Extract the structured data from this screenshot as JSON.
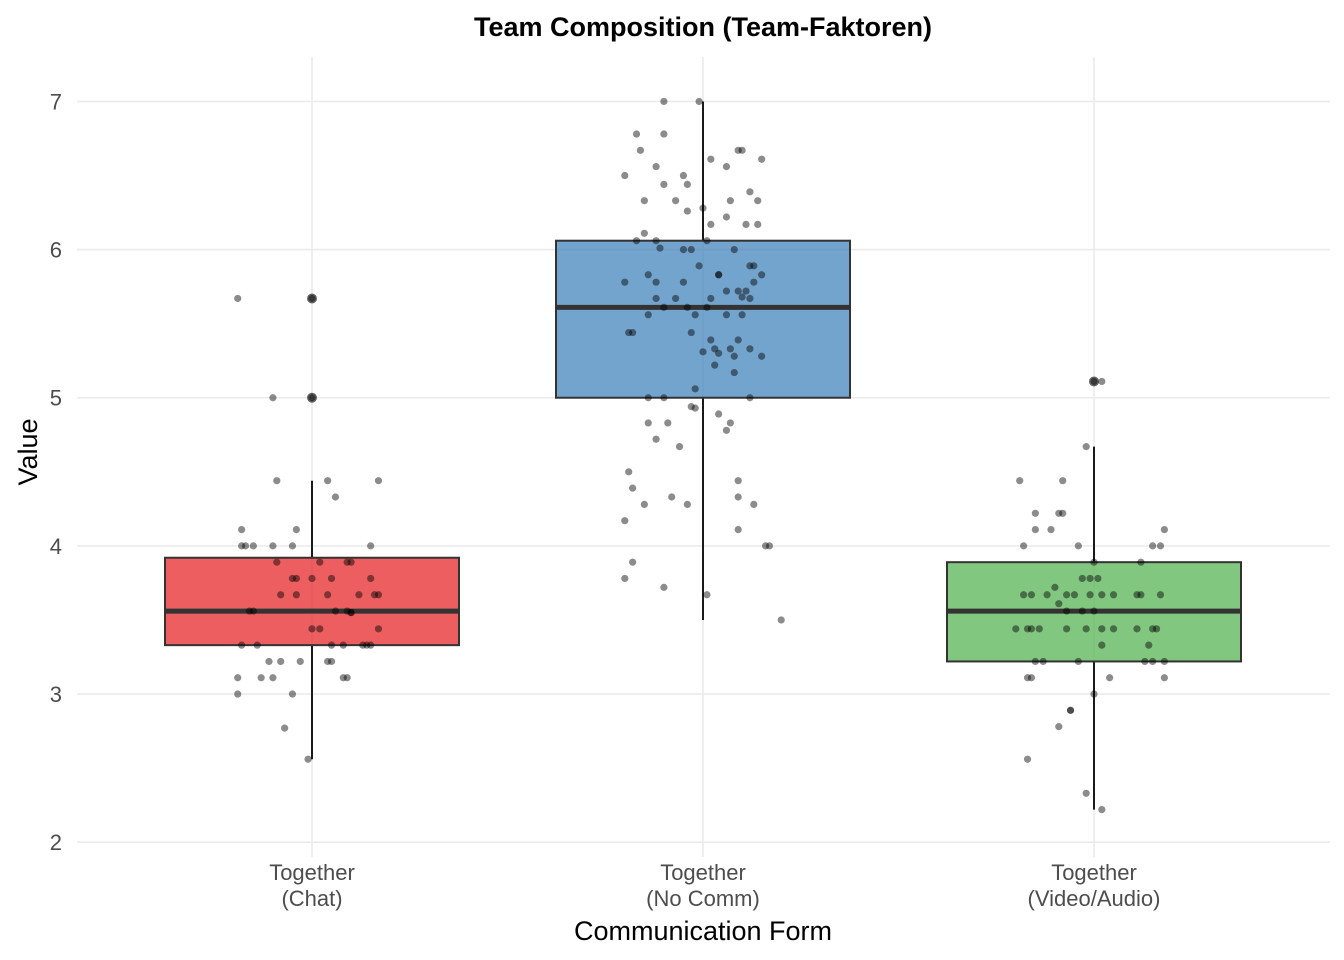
{
  "chart_data": {
    "type": "box",
    "title": "Team Composition (Team-Faktoren)",
    "xlabel": "Communication Form",
    "ylabel": "Value",
    "ylim": [
      1.9,
      7.3
    ],
    "yticks": [
      "2",
      "3",
      "4",
      "5",
      "6",
      "7"
    ],
    "grid": true,
    "legend": "none",
    "categories": [
      {
        "line1": "Together",
        "line2": "(Chat)"
      },
      {
        "line1": "Together",
        "line2": "(No Comm)"
      },
      {
        "line1": "Together",
        "line2": "(Video/Audio)"
      }
    ],
    "boxes": [
      {
        "name": "Together (Chat)",
        "color": "#E41A1C",
        "q1": 3.33,
        "median": 3.56,
        "q3": 3.92,
        "whisker_low": 2.56,
        "whisker_high": 4.44,
        "outliers": [
          5.67,
          5.0
        ],
        "points": [
          [
            -0.19,
            5.67
          ],
          [
            -0.1,
            5.0
          ],
          [
            0.0,
            5.67
          ],
          [
            0.0,
            5.0
          ],
          [
            -0.09,
            4.44
          ],
          [
            0.04,
            4.44
          ],
          [
            0.17,
            4.44
          ],
          [
            0.06,
            4.33
          ],
          [
            -0.18,
            4.11
          ],
          [
            -0.04,
            4.11
          ],
          [
            -0.18,
            4.0
          ],
          [
            -0.17,
            4.0
          ],
          [
            -0.15,
            4.0
          ],
          [
            -0.1,
            4.0
          ],
          [
            -0.05,
            4.0
          ],
          [
            0.15,
            4.0
          ],
          [
            -0.09,
            3.89
          ],
          [
            0.02,
            3.89
          ],
          [
            0.09,
            3.89
          ],
          [
            0.1,
            3.89
          ],
          [
            -0.05,
            3.78
          ],
          [
            -0.04,
            3.78
          ],
          [
            0.0,
            3.78
          ],
          [
            0.05,
            3.78
          ],
          [
            0.15,
            3.78
          ],
          [
            -0.08,
            3.67
          ],
          [
            -0.04,
            3.67
          ],
          [
            0.04,
            3.67
          ],
          [
            0.12,
            3.67
          ],
          [
            0.17,
            3.67
          ],
          [
            0.16,
            3.67
          ],
          [
            -0.16,
            3.56
          ],
          [
            -0.15,
            3.56
          ],
          [
            0.06,
            3.56
          ],
          [
            0.09,
            3.56
          ],
          [
            0.1,
            3.55
          ],
          [
            0.1,
            3.55
          ],
          [
            0.02,
            3.44
          ],
          [
            0.0,
            3.44
          ],
          [
            0.17,
            3.44
          ],
          [
            -0.18,
            3.33
          ],
          [
            -0.14,
            3.33
          ],
          [
            0.05,
            3.33
          ],
          [
            0.08,
            3.33
          ],
          [
            0.13,
            3.33
          ],
          [
            0.14,
            3.33
          ],
          [
            0.15,
            3.33
          ],
          [
            -0.11,
            3.22
          ],
          [
            -0.08,
            3.22
          ],
          [
            -0.03,
            3.22
          ],
          [
            0.04,
            3.22
          ],
          [
            0.05,
            3.22
          ],
          [
            -0.19,
            3.11
          ],
          [
            -0.13,
            3.11
          ],
          [
            -0.1,
            3.11
          ],
          [
            0.08,
            3.11
          ],
          [
            0.09,
            3.11
          ],
          [
            -0.19,
            3.0
          ],
          [
            -0.05,
            3.0
          ],
          [
            -0.07,
            2.77
          ],
          [
            -0.01,
            2.56
          ]
        ]
      },
      {
        "name": "Together (No Comm)",
        "color": "#377EB8",
        "q1": 5.0,
        "median": 5.61,
        "q3": 6.06,
        "whisker_low": 3.5,
        "whisker_high": 7.0,
        "outliers": [],
        "points": [
          [
            -0.1,
            7.0
          ],
          [
            -0.01,
            7.0
          ],
          [
            -0.17,
            6.78
          ],
          [
            -0.1,
            6.78
          ],
          [
            -0.16,
            6.67
          ],
          [
            0.09,
            6.67
          ],
          [
            0.1,
            6.67
          ],
          [
            0.02,
            6.61
          ],
          [
            0.15,
            6.61
          ],
          [
            -0.12,
            6.56
          ],
          [
            0.06,
            6.56
          ],
          [
            -0.2,
            6.5
          ],
          [
            -0.05,
            6.5
          ],
          [
            -0.04,
            6.44
          ],
          [
            -0.1,
            6.44
          ],
          [
            0.12,
            6.39
          ],
          [
            0.07,
            6.33
          ],
          [
            0.14,
            6.33
          ],
          [
            -0.07,
            6.33
          ],
          [
            -0.15,
            6.33
          ],
          [
            0.0,
            6.28
          ],
          [
            -0.04,
            6.26
          ],
          [
            0.06,
            6.22
          ],
          [
            0.02,
            6.17
          ],
          [
            0.11,
            6.17
          ],
          [
            0.14,
            6.17
          ],
          [
            -0.15,
            6.11
          ],
          [
            -0.17,
            6.06
          ],
          [
            -0.12,
            6.06
          ],
          [
            0.01,
            6.06
          ],
          [
            -0.11,
            6.01
          ],
          [
            -0.05,
            6.0
          ],
          [
            -0.03,
            6.0
          ],
          [
            0.08,
            6.0
          ],
          [
            -0.01,
            5.89
          ],
          [
            0.12,
            5.89
          ],
          [
            0.13,
            5.89
          ],
          [
            -0.14,
            5.83
          ],
          [
            0.04,
            5.83
          ],
          [
            0.04,
            5.83
          ],
          [
            0.15,
            5.83
          ],
          [
            -0.2,
            5.78
          ],
          [
            -0.12,
            5.78
          ],
          [
            -0.05,
            5.78
          ],
          [
            0.13,
            5.78
          ],
          [
            0.06,
            5.72
          ],
          [
            0.09,
            5.72
          ],
          [
            0.11,
            5.72
          ],
          [
            0.1,
            5.68
          ],
          [
            -0.12,
            5.67
          ],
          [
            -0.07,
            5.67
          ],
          [
            0.02,
            5.67
          ],
          [
            0.12,
            5.67
          ],
          [
            -0.1,
            5.61
          ],
          [
            -0.04,
            5.61
          ],
          [
            0.01,
            5.61
          ],
          [
            -0.14,
            5.56
          ],
          [
            -0.02,
            5.56
          ],
          [
            0.06,
            5.56
          ],
          [
            0.1,
            5.56
          ],
          [
            -0.19,
            5.44
          ],
          [
            -0.18,
            5.44
          ],
          [
            -0.03,
            5.44
          ],
          [
            0.02,
            5.39
          ],
          [
            0.09,
            5.39
          ],
          [
            0.03,
            5.33
          ],
          [
            0.07,
            5.33
          ],
          [
            0.12,
            5.33
          ],
          [
            0.0,
            5.31
          ],
          [
            0.04,
            5.3
          ],
          [
            0.08,
            5.28
          ],
          [
            0.15,
            5.28
          ],
          [
            0.03,
            5.22
          ],
          [
            0.08,
            5.17
          ],
          [
            -0.02,
            5.06
          ],
          [
            -0.14,
            5.0
          ],
          [
            -0.1,
            5.0
          ],
          [
            0.12,
            5.0
          ],
          [
            -0.03,
            4.94
          ],
          [
            -0.02,
            4.93
          ],
          [
            0.04,
            4.89
          ],
          [
            -0.14,
            4.83
          ],
          [
            -0.09,
            4.83
          ],
          [
            0.07,
            4.83
          ],
          [
            0.06,
            4.78
          ],
          [
            -0.12,
            4.72
          ],
          [
            -0.06,
            4.67
          ],
          [
            -0.19,
            4.5
          ],
          [
            -0.18,
            4.39
          ],
          [
            0.09,
            4.44
          ],
          [
            0.09,
            4.33
          ],
          [
            -0.08,
            4.33
          ],
          [
            -0.04,
            4.28
          ],
          [
            0.13,
            4.28
          ],
          [
            -0.15,
            4.28
          ],
          [
            -0.2,
            4.17
          ],
          [
            0.09,
            4.11
          ],
          [
            0.16,
            4.0
          ],
          [
            0.17,
            4.0
          ],
          [
            -0.18,
            3.89
          ],
          [
            -0.2,
            3.78
          ],
          [
            -0.1,
            3.72
          ],
          [
            0.01,
            3.67
          ],
          [
            0.2,
            3.5
          ]
        ]
      },
      {
        "name": "Together (Video/Audio)",
        "color": "#4DAF4A",
        "q1": 3.22,
        "median": 3.56,
        "q3": 3.89,
        "whisker_low": 2.22,
        "whisker_high": 4.67,
        "outliers": [
          5.11
        ],
        "points": [
          [
            0.0,
            5.11
          ],
          [
            0.02,
            5.11
          ],
          [
            -0.02,
            4.67
          ],
          [
            -0.19,
            4.44
          ],
          [
            -0.08,
            4.44
          ],
          [
            -0.15,
            4.22
          ],
          [
            -0.08,
            4.22
          ],
          [
            -0.09,
            4.22
          ],
          [
            0.18,
            4.11
          ],
          [
            -0.15,
            4.11
          ],
          [
            -0.11,
            4.11
          ],
          [
            -0.18,
            4.0
          ],
          [
            -0.04,
            4.0
          ],
          [
            0.15,
            4.0
          ],
          [
            0.17,
            4.0
          ],
          [
            0.0,
            3.89
          ],
          [
            0.12,
            3.89
          ],
          [
            -0.03,
            3.78
          ],
          [
            -0.01,
            3.78
          ],
          [
            0.01,
            3.78
          ],
          [
            -0.1,
            3.72
          ],
          [
            -0.18,
            3.67
          ],
          [
            -0.16,
            3.67
          ],
          [
            -0.12,
            3.67
          ],
          [
            -0.07,
            3.67
          ],
          [
            -0.05,
            3.67
          ],
          [
            -0.01,
            3.67
          ],
          [
            0.02,
            3.67
          ],
          [
            0.05,
            3.67
          ],
          [
            0.11,
            3.67
          ],
          [
            0.12,
            3.67
          ],
          [
            0.17,
            3.67
          ],
          [
            -0.09,
            3.61
          ],
          [
            -0.07,
            3.56
          ],
          [
            -0.03,
            3.56
          ],
          [
            0.0,
            3.56
          ],
          [
            -0.2,
            3.44
          ],
          [
            -0.17,
            3.44
          ],
          [
            -0.16,
            3.44
          ],
          [
            -0.14,
            3.44
          ],
          [
            -0.07,
            3.44
          ],
          [
            -0.02,
            3.44
          ],
          [
            0.02,
            3.44
          ],
          [
            0.05,
            3.44
          ],
          [
            0.11,
            3.44
          ],
          [
            0.15,
            3.44
          ],
          [
            0.16,
            3.44
          ],
          [
            0.02,
            3.33
          ],
          [
            0.14,
            3.33
          ],
          [
            -0.15,
            3.22
          ],
          [
            -0.13,
            3.22
          ],
          [
            -0.04,
            3.22
          ],
          [
            0.13,
            3.22
          ],
          [
            0.15,
            3.22
          ],
          [
            0.18,
            3.22
          ],
          [
            -0.17,
            3.11
          ],
          [
            -0.16,
            3.11
          ],
          [
            0.04,
            3.11
          ],
          [
            0.18,
            3.11
          ],
          [
            0.0,
            3.0
          ],
          [
            -0.06,
            2.89
          ],
          [
            -0.06,
            2.89
          ],
          [
            -0.09,
            2.78
          ],
          [
            -0.17,
            2.56
          ],
          [
            -0.02,
            2.33
          ],
          [
            0.02,
            2.22
          ]
        ]
      }
    ]
  }
}
